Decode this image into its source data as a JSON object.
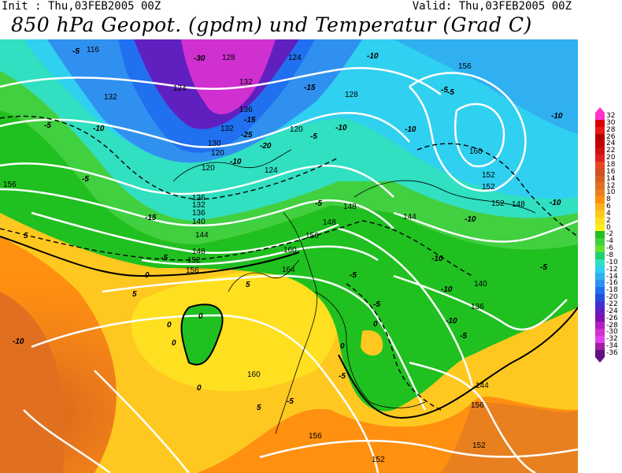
{
  "header": {
    "init": "Init : Thu,03FEB2005 00Z",
    "valid": "Valid: Thu,03FEB2005 00Z",
    "title": "850 hPa Geopot. (gpdm) und Temperatur (Grad C)"
  },
  "colorbar": {
    "labels": [
      "32",
      "30",
      "28",
      "26",
      "24",
      "22",
      "20",
      "18",
      "16",
      "14",
      "12",
      "10",
      "8",
      "6",
      "4",
      "2",
      "0",
      "-2",
      "-4",
      "-6",
      "-8",
      "-10",
      "-12",
      "-14",
      "-16",
      "-18",
      "-20",
      "-22",
      "-24",
      "-26",
      "-28",
      "-30",
      "-32",
      "-34",
      "-36"
    ],
    "colors": [
      "#ff33cc",
      "#d80000",
      "#e81818",
      "#b80000",
      "#c40000",
      "#cf1010",
      "#e02020",
      "#e84820",
      "#d05020",
      "#d86020",
      "#e07020",
      "#e98020",
      "#ff9010",
      "#ffb020",
      "#ffc820",
      "#ffe020",
      "#fff020",
      "#20c020",
      "#40d040",
      "#60e030",
      "#20d070",
      "#30e0c0",
      "#30d0f0",
      "#30b0f0",
      "#3090f0",
      "#2070f0",
      "#2050e0",
      "#4030d0",
      "#6020c0",
      "#8010b0",
      "#b020c0",
      "#d030d0",
      "#e040f0",
      "#a020a0",
      "#601080"
    ]
  },
  "map": {
    "geopotential_labels": [
      "116",
      "124",
      "128",
      "124",
      "132",
      "132",
      "136",
      "132",
      "130",
      "120",
      "120",
      "124",
      "128",
      "120",
      "136",
      "132",
      "136",
      "140",
      "144",
      "148",
      "152",
      "156",
      "156",
      "148",
      "148",
      "152",
      "156",
      "160",
      "164",
      "152",
      "156",
      "152",
      "160",
      "140",
      "136",
      "144",
      "148",
      "144",
      "160",
      "156",
      "152",
      "152",
      "156"
    ],
    "temperature_labels": [
      "-5",
      "-10",
      "-30",
      "-15",
      "-10",
      "-10",
      "-15",
      "-25",
      "-20",
      "-10",
      "-10",
      "-5",
      "-5",
      "-5",
      "-15",
      "-5",
      "-5",
      "-10",
      "-10",
      "-10",
      "-10",
      "-10",
      "-5",
      "-5",
      "-5",
      "0",
      "0",
      "0",
      "0",
      "0",
      "0",
      "0",
      "5",
      "5",
      "5",
      "5",
      "-10",
      "-5",
      "-5",
      "-10",
      "-5",
      "-5",
      "-5"
    ]
  }
}
